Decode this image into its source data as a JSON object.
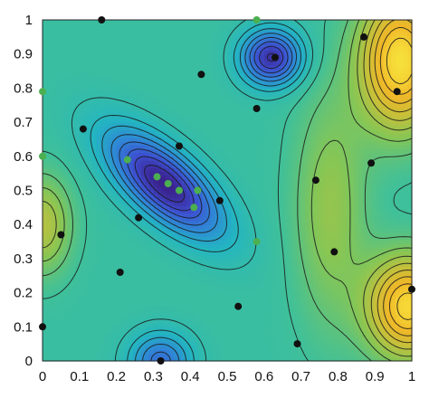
{
  "chart_data": {
    "type": "scatter",
    "subtype": "contour-with-scatter",
    "title": "",
    "xlabel": "",
    "ylabel": "",
    "xlim": [
      0,
      1
    ],
    "ylim": [
      0,
      1
    ],
    "grid": false,
    "legend": "none",
    "x_ticks": [
      "0",
      "0.1",
      "0.2",
      "0.3",
      "0.4",
      "0.5",
      "0.6",
      "0.7",
      "0.8",
      "0.9",
      "1"
    ],
    "y_ticks": [
      "0",
      "0.1",
      "0.2",
      "0.3",
      "0.4",
      "0.5",
      "0.6",
      "0.7",
      "0.8",
      "0.9",
      "1"
    ],
    "colormap": [
      "#3b1f8a",
      "#3d4fd0",
      "#2f86d6",
      "#23b5c2",
      "#3fc09a",
      "#86c655",
      "#c6c03a",
      "#f0b728",
      "#f7e03a"
    ],
    "series": [
      {
        "color": "#111111",
        "x": [
          0.16,
          0.63,
          0.43,
          0.87,
          0.96,
          0.58,
          0.11,
          0.37,
          0.48,
          0.74,
          0.89,
          0.26,
          0.05,
          0.79,
          0.21,
          0.53,
          0.0,
          0.69,
          0.32,
          1.0
        ],
        "y": [
          1.0,
          0.89,
          0.84,
          0.95,
          0.79,
          0.74,
          0.68,
          0.63,
          0.47,
          0.53,
          0.58,
          0.42,
          0.37,
          0.32,
          0.26,
          0.16,
          0.1,
          0.05,
          0.0,
          0.21
        ]
      },
      {
        "color": "#4caf50",
        "x": [
          0.58,
          0.0,
          0.0,
          0.23,
          0.31,
          0.34,
          0.37,
          0.42,
          0.41,
          0.58
        ],
        "y": [
          1.0,
          0.79,
          0.6,
          0.59,
          0.54,
          0.52,
          0.5,
          0.5,
          0.45,
          0.35
        ]
      }
    ]
  }
}
